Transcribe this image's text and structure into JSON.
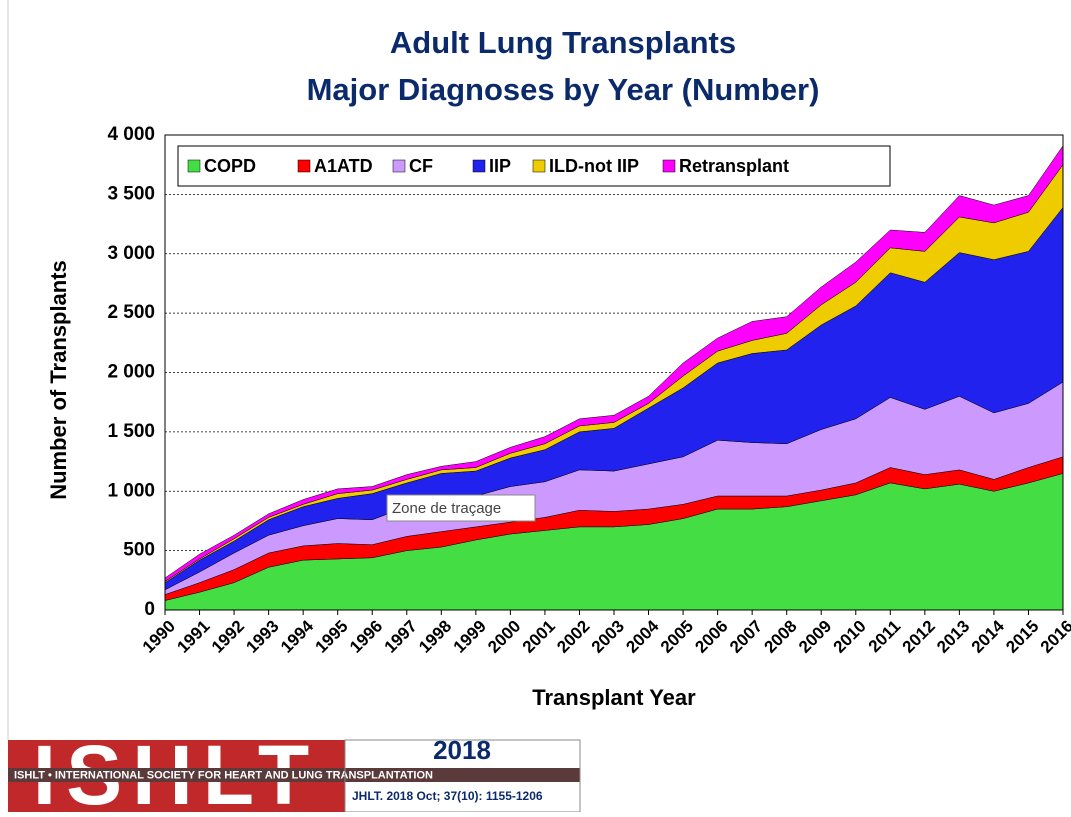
{
  "chart_data": {
    "type": "stacked-area",
    "title": "Adult Lung Transplants",
    "subtitle": "Major Diagnoses by Year (Number)",
    "x_label": "Transplant Year",
    "y_label": "Number of Transplants",
    "categories": [
      "1990",
      "1991",
      "1992",
      "1993",
      "1994",
      "1995",
      "1996",
      "1997",
      "1998",
      "1999",
      "2000",
      "2001",
      "2002",
      "2003",
      "2004",
      "2005",
      "2006",
      "2007",
      "2008",
      "2009",
      "2010",
      "2011",
      "2012",
      "2013",
      "2014",
      "2015",
      "2016"
    ],
    "series": [
      {
        "name": "COPD",
        "color": "#44dd44",
        "values": [
          80,
          150,
          230,
          360,
          420,
          430,
          440,
          500,
          530,
          590,
          640,
          670,
          700,
          700,
          720,
          770,
          850,
          850,
          870,
          920,
          970,
          1070,
          1020,
          1060,
          1000,
          1070,
          1150
        ]
      },
      {
        "name": "A1ATD",
        "color": "#ff0000",
        "values": [
          50,
          80,
          110,
          120,
          120,
          130,
          110,
          120,
          130,
          110,
          100,
          110,
          140,
          130,
          130,
          120,
          110,
          110,
          90,
          90,
          100,
          130,
          120,
          120,
          100,
          130,
          140
        ]
      },
      {
        "name": "CF",
        "color": "#cc99ff",
        "values": [
          40,
          90,
          140,
          150,
          170,
          210,
          210,
          250,
          270,
          260,
          300,
          300,
          340,
          340,
          380,
          400,
          470,
          450,
          440,
          510,
          540,
          590,
          550,
          620,
          560,
          540,
          630
        ]
      },
      {
        "name": "IIP",
        "color": "#2222ee",
        "values": [
          60,
          100,
          100,
          130,
          160,
          170,
          220,
          200,
          220,
          210,
          240,
          270,
          320,
          360,
          470,
          580,
          650,
          750,
          790,
          880,
          950,
          1050,
          1070,
          1210,
          1290,
          1280,
          1470
        ]
      },
      {
        "name": "ILD-not IIP",
        "color": "#eecc00",
        "values": [
          10,
          10,
          20,
          20,
          20,
          40,
          30,
          30,
          30,
          30,
          40,
          50,
          50,
          50,
          40,
          100,
          100,
          110,
          140,
          170,
          200,
          210,
          260,
          300,
          310,
          330,
          360
        ]
      },
      {
        "name": "Retransplant",
        "color": "#ff00ff",
        "values": [
          30,
          40,
          30,
          30,
          40,
          40,
          30,
          40,
          30,
          50,
          50,
          60,
          60,
          60,
          60,
          110,
          110,
          160,
          140,
          150,
          170,
          150,
          160,
          180,
          150,
          140,
          160
        ]
      }
    ],
    "ylim": [
      0,
      4000
    ],
    "yticks": [
      0,
      500,
      {
        "value": 1000,
        "label": "1 000"
      },
      {
        "value": 1500,
        "label": "1 500"
      },
      {
        "value": 2000,
        "label": "2 000"
      },
      {
        "value": 2500,
        "label": "2 500"
      },
      {
        "value": 3000,
        "label": "3 000"
      },
      {
        "value": 3500,
        "label": "3 500"
      },
      {
        "value": 4000,
        "label": "4 000"
      }
    ],
    "grid": true,
    "legend": "top-left",
    "tooltip": "Zone de traçage"
  },
  "footer": {
    "logo": "ISHLT",
    "society": "ISHLT • INTERNATIONAL SOCIETY FOR HEART AND LUNG TRANSPLANTATION",
    "year": "2018",
    "citation": "JHLT. 2018 Oct; 37(10): 1155-1206"
  }
}
